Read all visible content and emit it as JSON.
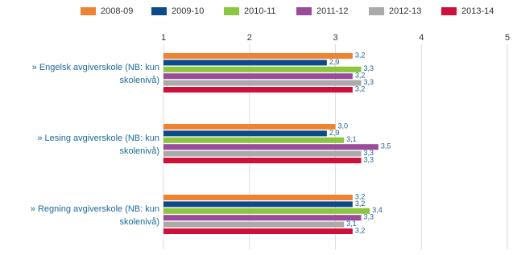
{
  "chart_data": {
    "type": "bar",
    "orientation": "horizontal",
    "categories": [
      "» Engelsk avgiverskole (NB: kun skolenivå)",
      "» Lesing avgiverskole (NB: kun skolenivå)",
      "» Regning avgiverskole (NB: kun skolenivå)"
    ],
    "series": [
      {
        "name": "2008-09",
        "color": "#f08331",
        "values": [
          3.2,
          3.0,
          3.2
        ],
        "value_labels": [
          "3,2",
          "3,0",
          "3,2"
        ]
      },
      {
        "name": "2009-10",
        "color": "#0d4a8a",
        "values": [
          2.9,
          2.9,
          3.2
        ],
        "value_labels": [
          "2,9",
          "2,9",
          "3,2"
        ]
      },
      {
        "name": "2010-11",
        "color": "#8cc63f",
        "values": [
          3.3,
          3.1,
          3.4
        ],
        "value_labels": [
          "3,3",
          "3,1",
          "3,4"
        ]
      },
      {
        "name": "2011-12",
        "color": "#9a4c9a",
        "values": [
          3.2,
          3.5,
          3.3
        ],
        "value_labels": [
          "3,2",
          "3,5",
          "3,3"
        ]
      },
      {
        "name": "2012-13",
        "color": "#aaaaaa",
        "values": [
          3.3,
          3.3,
          3.1
        ],
        "value_labels": [
          "3,3",
          "3,3",
          "3,1"
        ]
      },
      {
        "name": "2013-14",
        "color": "#d0103a",
        "values": [
          3.2,
          3.3,
          3.2
        ],
        "value_labels": [
          "3,2",
          "3,3",
          "3,2"
        ]
      }
    ],
    "xlim": [
      1,
      5
    ],
    "xticks": [
      1,
      2,
      3,
      4,
      5
    ],
    "grid": true
  }
}
